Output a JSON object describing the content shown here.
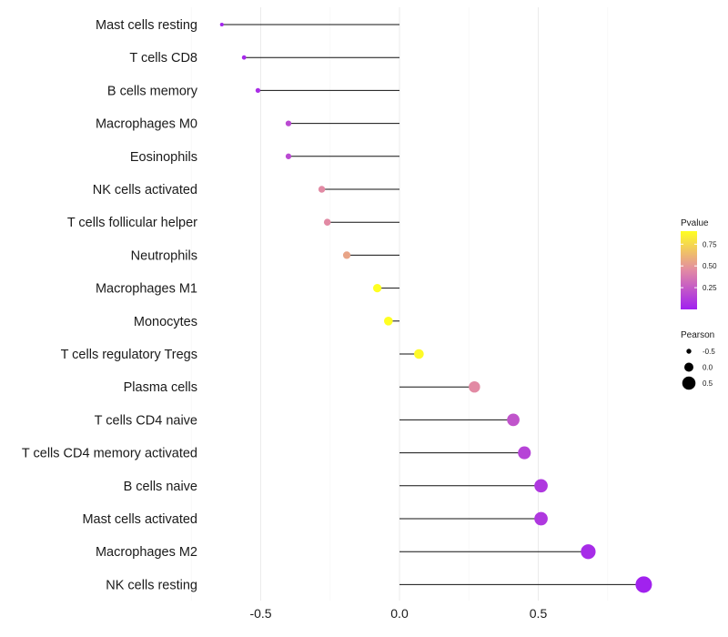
{
  "chart_data": {
    "type": "lollipop",
    "title": "",
    "xlabel": "",
    "ylabel": "",
    "xlim": [
      -0.72,
      0.92
    ],
    "x_ticks": [
      -0.5,
      0.0,
      0.5
    ],
    "x_tick_labels": [
      "-0.5",
      "0.0",
      "0.5"
    ],
    "grid": true,
    "baseline": 0,
    "categories": [
      "Mast cells resting",
      "T cells CD8",
      "B cells memory",
      "Macrophages M0",
      "Eosinophils",
      "NK cells activated",
      "T cells follicular helper",
      "Neutrophils",
      "Macrophages M1",
      "Monocytes",
      "T cells regulatory  Tregs ",
      "Plasma cells",
      "T cells CD4 naive",
      "T cells CD4 memory activated",
      "B cells naive",
      "Mast cells activated",
      "Macrophages M2",
      "NK cells resting"
    ],
    "values": [
      -0.64,
      -0.56,
      -0.51,
      -0.4,
      -0.4,
      -0.28,
      -0.26,
      -0.19,
      -0.08,
      -0.04,
      0.07,
      0.27,
      0.41,
      0.45,
      0.51,
      0.51,
      0.68,
      0.88
    ],
    "pvalues": [
      0.02,
      0.04,
      0.06,
      0.18,
      0.18,
      0.45,
      0.45,
      0.55,
      0.9,
      0.95,
      0.88,
      0.45,
      0.22,
      0.15,
      0.1,
      0.1,
      0.05,
      0.01
    ],
    "color_scale": {
      "title": "Pvalue",
      "ticks": [
        0.25,
        0.5,
        0.75
      ],
      "tick_labels": [
        "0.25",
        "0.50",
        "0.75"
      ],
      "range": [
        0.0,
        0.9
      ],
      "colors": [
        "#a020f0",
        "#e28aa4",
        "#ffff22"
      ]
    },
    "size_legend": {
      "title": "Pearson",
      "values": [
        -0.5,
        0.0,
        0.5
      ],
      "labels": [
        "-0.5",
        "0.0",
        "0.5"
      ]
    }
  }
}
